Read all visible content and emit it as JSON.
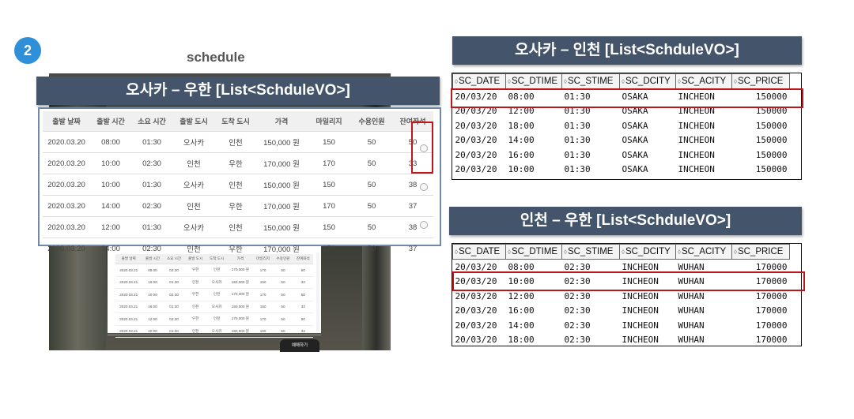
{
  "step_number": "2",
  "schedule_title": "schedule",
  "banners": {
    "left": "오사카 – 우한 [List<SchduleVO>]",
    "right_top": "오사카 – 인천 [List<SchduleVO>]",
    "right_bottom": "인천 – 우한 [List<SchduleVO>]"
  },
  "web_table": {
    "headers": [
      "출발 날짜",
      "출발 시간",
      "소요 시간",
      "출발 도시",
      "도착 도시",
      "가격",
      "마일리지",
      "수용인원",
      "잔여좌석"
    ],
    "rows": [
      [
        "2020.03.20",
        "08:00",
        "01:30",
        "오사카",
        "인천",
        "150,000 원",
        "150",
        "50",
        "50"
      ],
      [
        "2020.03.20",
        "10:00",
        "02:30",
        "인천",
        "우한",
        "170,000 원",
        "170",
        "50",
        "33"
      ],
      [
        "2020.03.20",
        "10:00",
        "01:30",
        "오사카",
        "인천",
        "150,000 원",
        "150",
        "50",
        "38"
      ],
      [
        "2020.03.20",
        "14:00",
        "02:30",
        "인천",
        "우한",
        "170,000 원",
        "170",
        "50",
        "37"
      ],
      [
        "2020.03.20",
        "12:00",
        "01:30",
        "오사카",
        "인천",
        "150,000 원",
        "150",
        "50",
        "38"
      ],
      [
        "2020.03.20",
        "14:00",
        "02:30",
        "인천",
        "우한",
        "170,000 원",
        "170",
        "50",
        "37"
      ]
    ]
  },
  "inner_table": {
    "headers": [
      "출발 날짜",
      "출발 시간",
      "소요 시간",
      "출발 도시",
      "도착 도시",
      "가격",
      "마일리지",
      "수용인원",
      "잔여좌석"
    ],
    "rows": [
      [
        "2020.03.21",
        "08:00",
        "02:30",
        "우한",
        "인천",
        "170,000 원",
        "170",
        "50",
        "50"
      ],
      [
        "2020.03.21",
        "16:00",
        "01:30",
        "인천",
        "오사카",
        "150,000 원",
        "150",
        "50",
        "33"
      ],
      [
        "2020.03.21",
        "10:00",
        "02:30",
        "우한",
        "인천",
        "170,000 원",
        "170",
        "50",
        "50"
      ],
      [
        "2020.03.21",
        "18:00",
        "01:30",
        "인천",
        "오사카",
        "150,000 원",
        "150",
        "50",
        "33"
      ],
      [
        "2020.03.21",
        "12:00",
        "02:30",
        "우한",
        "인천",
        "170,000 원",
        "170",
        "50",
        "50"
      ],
      [
        "2020.03.21",
        "20:00",
        "01:30",
        "인천",
        "오사카",
        "150,000 원",
        "150",
        "50",
        "33"
      ]
    ],
    "reserve_button": "예매하기"
  },
  "sql_osaka_incheon": {
    "headers": [
      "SC_DATE",
      "SC_DTIME",
      "SC_STIME",
      "SC_DCITY",
      "SC_ACITY",
      "SC_PRICE"
    ],
    "rows": [
      [
        "20/03/20",
        "08:00",
        "01:30",
        "OSAKA",
        "INCHEON",
        "150000"
      ],
      [
        "20/03/20",
        "12:00",
        "01:30",
        "OSAKA",
        "INCHEON",
        "150000"
      ],
      [
        "20/03/20",
        "18:00",
        "01:30",
        "OSAKA",
        "INCHEON",
        "150000"
      ],
      [
        "20/03/20",
        "14:00",
        "01:30",
        "OSAKA",
        "INCHEON",
        "150000"
      ],
      [
        "20/03/20",
        "16:00",
        "01:30",
        "OSAKA",
        "INCHEON",
        "150000"
      ],
      [
        "20/03/20",
        "10:00",
        "01:30",
        "OSAKA",
        "INCHEON",
        "150000"
      ]
    ]
  },
  "sql_incheon_wuhan": {
    "headers": [
      "SC_DATE",
      "SC_DTIME",
      "SC_STIME",
      "SC_DCITY",
      "SC_ACITY",
      "SC_PRICE"
    ],
    "rows": [
      [
        "20/03/20",
        "08:00",
        "02:30",
        "INCHEON",
        "WUHAN",
        "170000"
      ],
      [
        "20/03/20",
        "10:00",
        "02:30",
        "INCHEON",
        "WUHAN",
        "170000"
      ],
      [
        "20/03/20",
        "12:00",
        "02:30",
        "INCHEON",
        "WUHAN",
        "170000"
      ],
      [
        "20/03/20",
        "16:00",
        "02:30",
        "INCHEON",
        "WUHAN",
        "170000"
      ],
      [
        "20/03/20",
        "14:00",
        "02:30",
        "INCHEON",
        "WUHAN",
        "170000"
      ],
      [
        "20/03/20",
        "18:00",
        "02:30",
        "INCHEON",
        "WUHAN",
        "170000"
      ]
    ]
  },
  "colors": {
    "banner": "#44546a",
    "highlight": "#c0151b",
    "step_badge": "#2f8fd8",
    "web_table_border": "#6f89a6"
  }
}
